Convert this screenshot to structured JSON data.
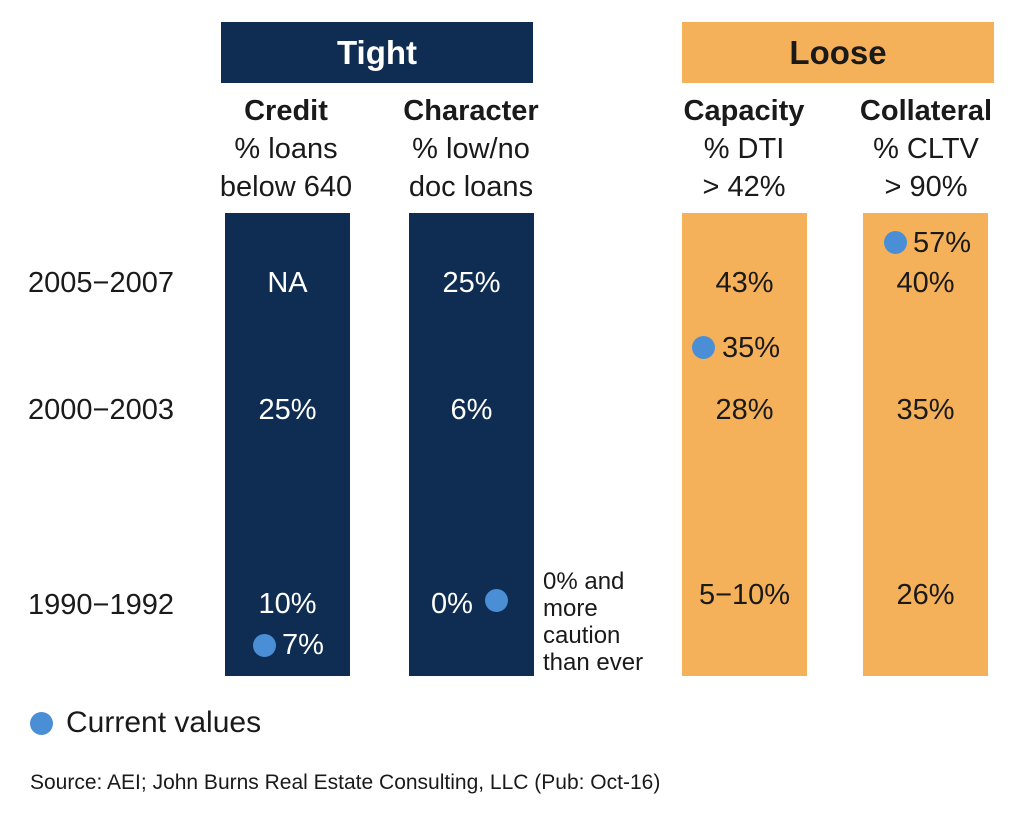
{
  "colors": {
    "tight": "#0f2d52",
    "loose": "#f5b159",
    "current_dot": "#4a8fd6"
  },
  "banners": {
    "tight": "Tight",
    "loose": "Loose"
  },
  "columns": [
    {
      "name": "Credit",
      "sub1": "% loans",
      "sub2": "below 640"
    },
    {
      "name": "Character",
      "sub1": "% low/no",
      "sub2": "doc loans"
    },
    {
      "name": "Capacity",
      "sub1": "% DTI",
      "sub2": "> 42%"
    },
    {
      "name": "Collateral",
      "sub1": "% CLTV",
      "sub2": "> 90%"
    }
  ],
  "rows": [
    "2005−2007",
    "2000−2003",
    "1990−1992"
  ],
  "note": [
    "0% and",
    "more",
    "caution",
    "than ever"
  ],
  "legend": {
    "label": "Current values"
  },
  "source": "Source: AEI; John Burns Real Estate Consulting, LLC (Pub: Oct-16)",
  "chart_data": {
    "type": "table",
    "columns": [
      "Credit",
      "Character",
      "Capacity",
      "Collateral"
    ],
    "groups": {
      "Tight": [
        "Credit",
        "Character"
      ],
      "Loose": [
        "Capacity",
        "Collateral"
      ]
    },
    "rows": [
      {
        "period": "2005−2007",
        "values": [
          "NA",
          "25%",
          "43%",
          "40%"
        ]
      },
      {
        "period": "2000−2003",
        "values": [
          "25%",
          "6%",
          "28%",
          "35%"
        ]
      },
      {
        "period": "1990−1992",
        "values": [
          "10%",
          "0%",
          "5−10%",
          "26%"
        ]
      }
    ],
    "current_values": {
      "Credit": "7%",
      "Character": "0%",
      "Capacity": "35%",
      "Collateral": "57%"
    }
  }
}
